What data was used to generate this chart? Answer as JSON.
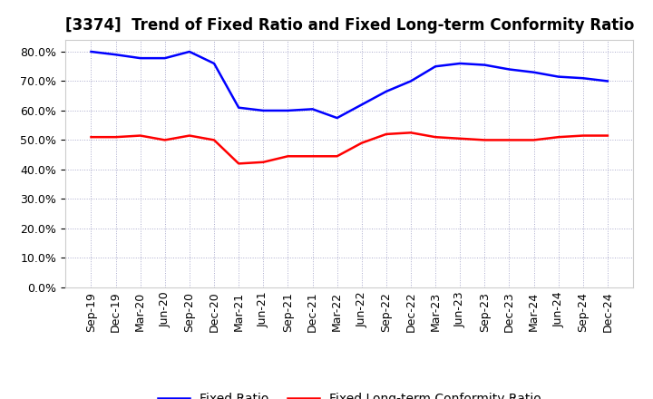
{
  "title": "[3374]  Trend of Fixed Ratio and Fixed Long-term Conformity Ratio",
  "x_labels": [
    "Sep-19",
    "Dec-19",
    "Mar-20",
    "Jun-20",
    "Sep-20",
    "Dec-20",
    "Mar-21",
    "Jun-21",
    "Sep-21",
    "Dec-21",
    "Mar-22",
    "Jun-22",
    "Sep-22",
    "Dec-22",
    "Mar-23",
    "Jun-23",
    "Sep-23",
    "Dec-23",
    "Mar-24",
    "Jun-24",
    "Sep-24",
    "Dec-24"
  ],
  "fixed_ratio": [
    0.8,
    0.79,
    0.778,
    0.778,
    0.8,
    0.76,
    0.61,
    0.6,
    0.6,
    0.605,
    0.575,
    0.62,
    0.665,
    0.7,
    0.75,
    0.76,
    0.755,
    0.74,
    0.73,
    0.715,
    0.71,
    0.7
  ],
  "fixed_lt_ratio": [
    0.51,
    0.51,
    0.515,
    0.5,
    0.515,
    0.5,
    0.42,
    0.425,
    0.445,
    0.445,
    0.445,
    0.49,
    0.52,
    0.525,
    0.51,
    0.505,
    0.5,
    0.5,
    0.5,
    0.51,
    0.515,
    0.515
  ],
  "fixed_ratio_color": "#0000FF",
  "fixed_lt_ratio_color": "#FF0000",
  "ylim": [
    0.0,
    0.84
  ],
  "yticks": [
    0.0,
    0.1,
    0.2,
    0.3,
    0.4,
    0.5,
    0.6,
    0.7,
    0.8
  ],
  "background_color": "#FFFFFF",
  "grid_color": "#AAAACC",
  "legend_fixed_ratio": "Fixed Ratio",
  "legend_fixed_lt_ratio": "Fixed Long-term Conformity Ratio",
  "title_fontsize": 12,
  "axis_fontsize": 9,
  "legend_fontsize": 10,
  "line_width": 1.8
}
